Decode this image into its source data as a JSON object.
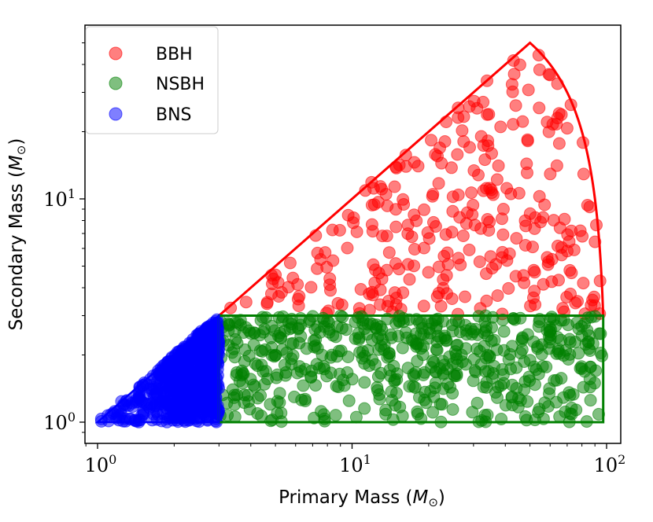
{
  "chart_data": {
    "type": "scatter",
    "xlabel": "Primary Mass (",
    "ylabel": "Secondary Mass (",
    "unit_symbol": "M",
    "unit_subscript": "⊙",
    "x_scale": "log",
    "y_scale": "log",
    "xlim": [
      0.8,
      105
    ],
    "ylim": [
      0.8,
      60
    ],
    "x_ticks": [
      {
        "value": 1,
        "base": "10",
        "exp": "0"
      },
      {
        "value": 10,
        "base": "10",
        "exp": "1"
      },
      {
        "value": 100,
        "base": "10",
        "exp": "2"
      }
    ],
    "y_ticks": [
      {
        "value": 1,
        "base": "10",
        "exp": "0"
      },
      {
        "value": 10,
        "base": "10",
        "exp": "1"
      }
    ],
    "grid": false,
    "legend": "top-left",
    "series": [
      {
        "name": "BBH",
        "color": "#ff0000",
        "region": "bbh",
        "count": 300
      },
      {
        "name": "NSBH",
        "color": "#008000",
        "region": "nsbh",
        "count": 560
      },
      {
        "name": "BNS",
        "color": "#0000ff",
        "region": "bns",
        "count": 700
      }
    ],
    "boundaries": [
      {
        "series": "BBH",
        "color": "#ff0000",
        "shape": "m1 >= m2, m2 >= 3, m1 + m2 <= 100",
        "vertices": [
          [
            3,
            3
          ],
          [
            50,
            50
          ],
          [
            97,
            3
          ]
        ]
      },
      {
        "series": "NSBH",
        "color": "#008000",
        "shape": "3 <= m1 <= 97, 1 <= m2 <= 3",
        "vertices": [
          [
            3,
            1
          ],
          [
            97,
            1
          ],
          [
            97,
            3
          ],
          [
            3,
            3
          ]
        ]
      },
      {
        "series": "BNS",
        "color": "#0000ff",
        "shape": "1 <= m2 <= m1 <= 3",
        "vertices": [
          [
            1,
            1
          ],
          [
            3,
            1
          ],
          [
            3,
            3
          ]
        ]
      }
    ]
  }
}
